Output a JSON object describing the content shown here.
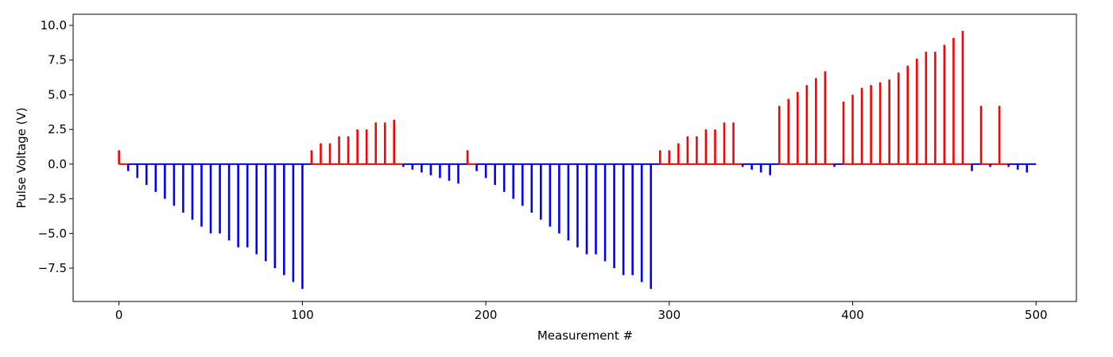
{
  "chart_data": {
    "type": "bar",
    "title": "",
    "xlabel": "Measurement #",
    "ylabel": "Pulse Voltage (V)",
    "xlim": [
      -25,
      522
    ],
    "ylim": [
      -9.9,
      10.8
    ],
    "xticks": [
      0,
      100,
      200,
      300,
      400,
      500
    ],
    "xtick_labels": [
      "0",
      "100",
      "200",
      "300",
      "400",
      "500"
    ],
    "yticks": [
      10.0,
      7.5,
      5.0,
      2.5,
      0.0,
      -2.5,
      -5.0,
      -7.5
    ],
    "ytick_labels": [
      "10.0",
      "7.5",
      "5.0",
      "2.5",
      "0.0",
      "−2.5",
      "−5.0",
      "−7.5"
    ],
    "colors": {
      "positive": "#ff0000",
      "negative": "#0000ff"
    },
    "baseline": [
      {
        "x0": 0,
        "x1": 5,
        "color": "#ff0000"
      },
      {
        "x0": 5,
        "x1": 105,
        "color": "#0000ff"
      },
      {
        "x0": 105,
        "x1": 155,
        "color": "#ff0000"
      },
      {
        "x0": 155,
        "x1": 190,
        "color": "#0000ff"
      },
      {
        "x0": 190,
        "x1": 195,
        "color": "#ff0000"
      },
      {
        "x0": 195,
        "x1": 295,
        "color": "#0000ff"
      },
      {
        "x0": 295,
        "x1": 340,
        "color": "#ff0000"
      },
      {
        "x0": 340,
        "x1": 360,
        "color": "#0000ff"
      },
      {
        "x0": 360,
        "x1": 390,
        "color": "#ff0000"
      },
      {
        "x0": 390,
        "x1": 395,
        "color": "#0000ff"
      },
      {
        "x0": 395,
        "x1": 465,
        "color": "#ff0000"
      },
      {
        "x0": 465,
        "x1": 470,
        "color": "#0000ff"
      },
      {
        "x0": 470,
        "x1": 485,
        "color": "#ff0000"
      },
      {
        "x0": 485,
        "x1": 500,
        "color": "#0000ff"
      }
    ],
    "pulses": [
      [
        0,
        1.0
      ],
      [
        5,
        -0.5
      ],
      [
        10,
        -1.0
      ],
      [
        15,
        -1.5
      ],
      [
        20,
        -2.0
      ],
      [
        25,
        -2.5
      ],
      [
        30,
        -3.0
      ],
      [
        35,
        -3.5
      ],
      [
        40,
        -4.0
      ],
      [
        45,
        -4.5
      ],
      [
        50,
        -5.0
      ],
      [
        55,
        -5.0
      ],
      [
        60,
        -5.5
      ],
      [
        65,
        -6.0
      ],
      [
        70,
        -6.0
      ],
      [
        75,
        -6.5
      ],
      [
        80,
        -7.0
      ],
      [
        85,
        -7.5
      ],
      [
        90,
        -8.0
      ],
      [
        95,
        -8.5
      ],
      [
        100,
        -9.0
      ],
      [
        105,
        1.0
      ],
      [
        110,
        1.5
      ],
      [
        115,
        1.5
      ],
      [
        120,
        2.0
      ],
      [
        125,
        2.0
      ],
      [
        130,
        2.5
      ],
      [
        135,
        2.5
      ],
      [
        140,
        3.0
      ],
      [
        145,
        3.0
      ],
      [
        150,
        3.2
      ],
      [
        155,
        -0.2
      ],
      [
        160,
        -0.4
      ],
      [
        165,
        -0.6
      ],
      [
        170,
        -0.8
      ],
      [
        175,
        -1.0
      ],
      [
        180,
        -1.2
      ],
      [
        185,
        -1.4
      ],
      [
        190,
        1.0
      ],
      [
        195,
        -0.5
      ],
      [
        200,
        -1.0
      ],
      [
        205,
        -1.5
      ],
      [
        210,
        -2.0
      ],
      [
        215,
        -2.5
      ],
      [
        220,
        -3.0
      ],
      [
        225,
        -3.5
      ],
      [
        230,
        -4.0
      ],
      [
        235,
        -4.5
      ],
      [
        240,
        -5.0
      ],
      [
        245,
        -5.5
      ],
      [
        250,
        -6.0
      ],
      [
        255,
        -6.5
      ],
      [
        260,
        -6.5
      ],
      [
        265,
        -7.0
      ],
      [
        270,
        -7.5
      ],
      [
        275,
        -8.0
      ],
      [
        280,
        -8.0
      ],
      [
        285,
        -8.5
      ],
      [
        290,
        -9.0
      ],
      [
        295,
        1.0
      ],
      [
        300,
        1.0
      ],
      [
        305,
        1.5
      ],
      [
        310,
        2.0
      ],
      [
        315,
        2.0
      ],
      [
        320,
        2.5
      ],
      [
        325,
        2.5
      ],
      [
        330,
        3.0
      ],
      [
        335,
        3.0
      ],
      [
        340,
        -0.2
      ],
      [
        345,
        -0.4
      ],
      [
        350,
        -0.6
      ],
      [
        355,
        -0.8
      ],
      [
        360,
        4.2
      ],
      [
        365,
        4.7
      ],
      [
        370,
        5.2
      ],
      [
        375,
        5.7
      ],
      [
        380,
        6.2
      ],
      [
        385,
        6.7
      ],
      [
        390,
        -0.2
      ],
      [
        395,
        4.5
      ],
      [
        400,
        5.0
      ],
      [
        405,
        5.5
      ],
      [
        410,
        5.7
      ],
      [
        415,
        5.9
      ],
      [
        420,
        6.1
      ],
      [
        425,
        6.6
      ],
      [
        430,
        7.1
      ],
      [
        435,
        7.6
      ],
      [
        440,
        8.1
      ],
      [
        445,
        8.1
      ],
      [
        450,
        8.6
      ],
      [
        455,
        9.1
      ],
      [
        460,
        9.6
      ],
      [
        465,
        -0.5
      ],
      [
        470,
        4.2
      ],
      [
        475,
        -0.2
      ],
      [
        480,
        4.2
      ],
      [
        485,
        -0.2
      ],
      [
        490,
        -0.4
      ],
      [
        495,
        -0.6
      ]
    ]
  }
}
